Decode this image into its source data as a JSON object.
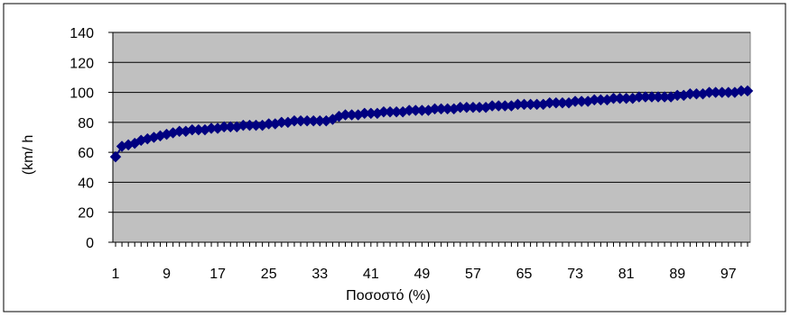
{
  "chart_data": {
    "type": "scatter",
    "title": "",
    "xlabel": "Ποσοστό (%)",
    "ylabel": "(km/ h",
    "xlim": [
      1,
      99
    ],
    "ylim": [
      0,
      140
    ],
    "x_tick_labels": [
      "1",
      "9",
      "17",
      "25",
      "33",
      "41",
      "49",
      "57",
      "65",
      "73",
      "81",
      "89",
      "97"
    ],
    "y_tick_labels": [
      "0",
      "20",
      "40",
      "60",
      "80",
      "100",
      "120",
      "140"
    ],
    "y_ticks": [
      0,
      20,
      40,
      60,
      80,
      100,
      120,
      140
    ],
    "grid": "horizontal",
    "legend": "none",
    "colors": {
      "plot_background": "#c0c0c0",
      "marker": "#000080",
      "line": "#000080",
      "grid": "#000000",
      "frame": "#000000"
    },
    "series": [
      {
        "x": [
          1,
          2,
          3,
          4,
          5,
          6,
          7,
          8,
          9,
          10,
          11,
          12,
          13,
          14,
          15,
          16,
          17,
          18,
          19,
          20,
          21,
          22,
          23,
          24,
          25,
          26,
          27,
          28,
          29,
          30,
          31,
          32,
          33,
          34,
          35,
          36,
          37,
          38,
          39,
          40,
          41,
          42,
          43,
          44,
          45,
          46,
          47,
          48,
          49,
          50,
          51,
          52,
          53,
          54,
          55,
          56,
          57,
          58,
          59,
          60,
          61,
          62,
          63,
          64,
          65,
          66,
          67,
          68,
          69,
          70,
          71,
          72,
          73,
          74,
          75,
          76,
          77,
          78,
          79,
          80,
          81,
          82,
          83,
          84,
          85,
          86,
          87,
          88,
          89,
          90,
          91,
          92,
          93,
          94,
          95,
          96,
          97,
          98,
          99,
          100
        ],
        "values": [
          57,
          64,
          65,
          66,
          68,
          69,
          70,
          71,
          72,
          73,
          74,
          74,
          75,
          75,
          75,
          76,
          76,
          77,
          77,
          77,
          78,
          78,
          78,
          78,
          79,
          79,
          80,
          80,
          81,
          81,
          81,
          81,
          81,
          81,
          82,
          84,
          85,
          85,
          85,
          86,
          86,
          86,
          87,
          87,
          87,
          87,
          88,
          88,
          88,
          88,
          89,
          89,
          89,
          89,
          90,
          90,
          90,
          90,
          90,
          91,
          91,
          91,
          91,
          92,
          92,
          92,
          92,
          92,
          93,
          93,
          93,
          93,
          94,
          94,
          94,
          95,
          95,
          95,
          96,
          96,
          96,
          96,
          97,
          97,
          97,
          97,
          97,
          97,
          98,
          98,
          99,
          99,
          99,
          100,
          100,
          100,
          100,
          100,
          101,
          101
        ]
      }
    ]
  }
}
